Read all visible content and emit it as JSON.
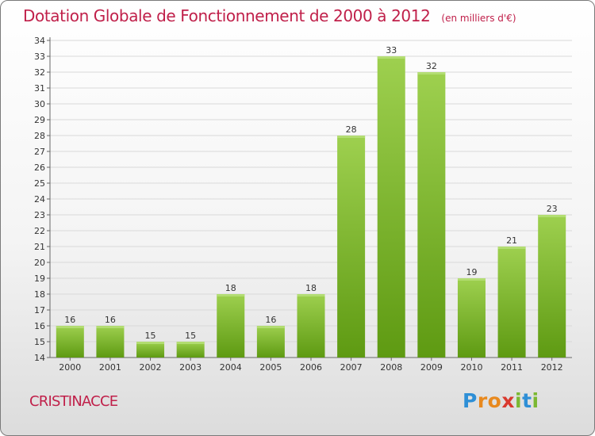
{
  "title": "Dotation Globale de Fonctionnement de 2000 à 2012",
  "unit": "(en milliers d'€)",
  "commune": "CRISTINACCE",
  "logo": {
    "letters": [
      "P",
      "r",
      "o",
      "x",
      "i",
      "t",
      "i"
    ]
  },
  "colors": {
    "title": "#c0204a",
    "bar_top": "#9ed04f",
    "bar_bottom": "#5e9a12",
    "grid": "#d9d9d9"
  },
  "chart_data": {
    "type": "bar",
    "title": "Dotation Globale de Fonctionnement de 2000 à 2012",
    "subtitle": "(en milliers d'€)",
    "xlabel": "",
    "ylabel": "",
    "categories": [
      "2000",
      "2001",
      "2002",
      "2003",
      "2004",
      "2005",
      "2006",
      "2007",
      "2008",
      "2009",
      "2010",
      "2011",
      "2012"
    ],
    "values": [
      16,
      16,
      15,
      15,
      18,
      16,
      18,
      28,
      33,
      32,
      19,
      21,
      23
    ],
    "ylim": [
      14,
      34
    ],
    "yticks": [
      14,
      15,
      16,
      17,
      18,
      19,
      20,
      21,
      22,
      23,
      24,
      25,
      26,
      27,
      28,
      29,
      30,
      31,
      32,
      33,
      34
    ],
    "grid": true,
    "legend": "none",
    "data_labels": true
  }
}
